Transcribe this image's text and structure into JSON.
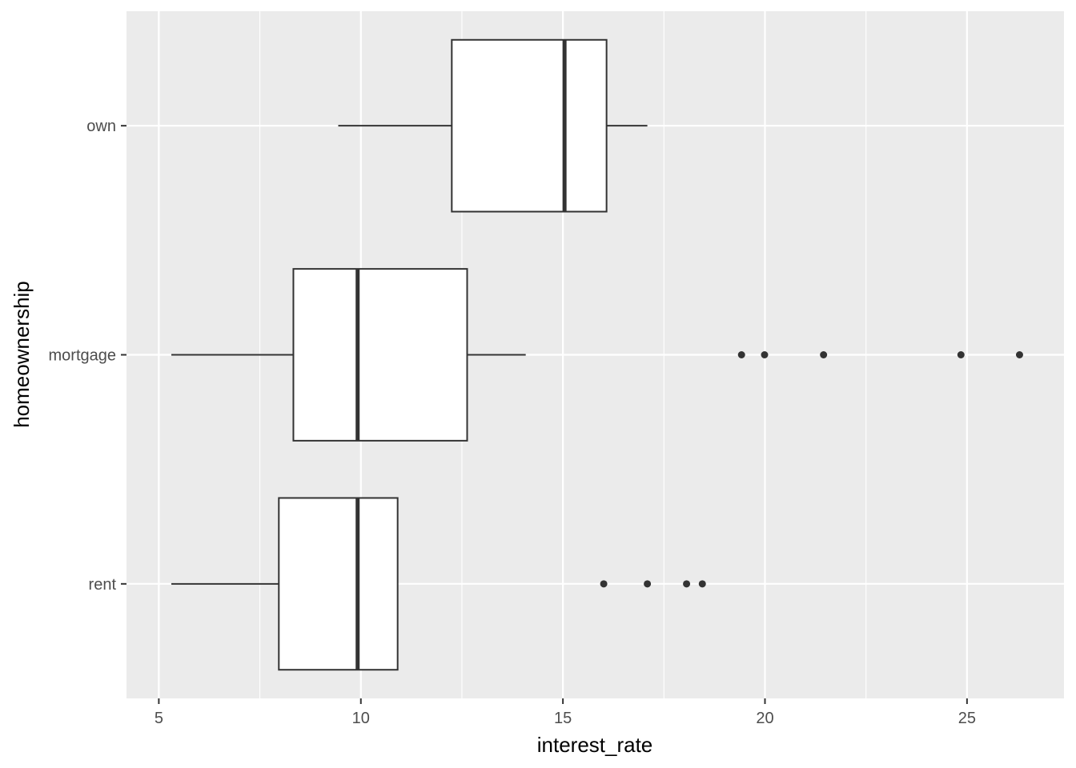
{
  "chart_data": {
    "type": "boxplot",
    "orientation": "horizontal",
    "title": "",
    "xlabel": "interest_rate",
    "ylabel": "homeownership",
    "xlim": [
      4.2,
      27.4
    ],
    "x_ticks": [
      5,
      10,
      15,
      20,
      25
    ],
    "x_tick_labels": [
      "5",
      "10",
      "15",
      "20",
      "25"
    ],
    "categories": [
      "own",
      "mortgage",
      "rent"
    ],
    "series": [
      {
        "category": "own",
        "whisker_low": 9.44,
        "q1": 12.25,
        "median": 15.04,
        "q3": 16.08,
        "whisker_high": 17.09,
        "outliers": []
      },
      {
        "category": "mortgage",
        "whisker_low": 5.31,
        "q1": 8.33,
        "median": 9.92,
        "q3": 12.63,
        "whisker_high": 14.08,
        "outliers": [
          19.42,
          19.99,
          21.45,
          24.85,
          26.3
        ]
      },
      {
        "category": "rent",
        "whisker_low": 5.31,
        "q1": 7.97,
        "median": 9.92,
        "q3": 10.91,
        "whisker_high": null,
        "outliers": [
          16.01,
          17.09,
          18.06,
          18.45
        ]
      }
    ],
    "grid": true,
    "panel_background": "#ebebeb",
    "gridline_color": "#ffffff",
    "box_fill": "#ffffff",
    "box_stroke": "#333333",
    "outlier_color": "#333333",
    "tick_label_color": "#4d4d4d"
  }
}
